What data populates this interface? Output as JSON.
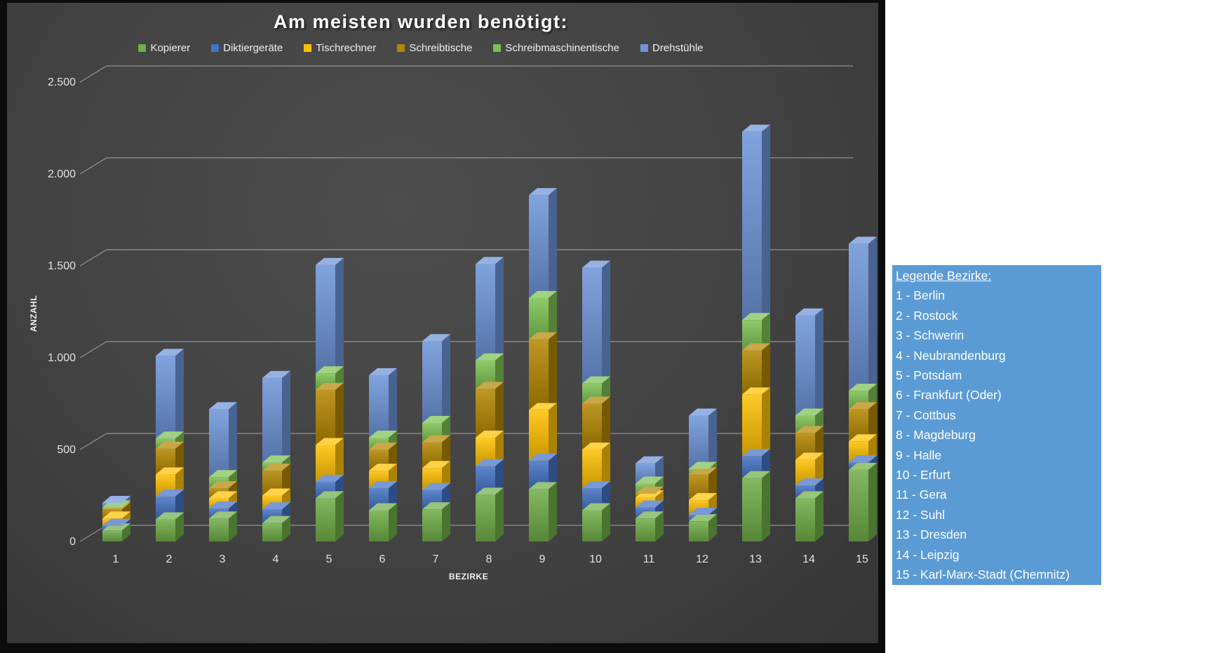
{
  "title": "Am meisten wurden benötigt:",
  "chart_data": {
    "type": "bar",
    "stacked": true,
    "title": "Am meisten wurden benötigt:",
    "xlabel": "BEZIRKE",
    "ylabel": "ANZAHL",
    "ylim": [
      0,
      2500
    ],
    "grid": true,
    "legend_position": "top",
    "y_tick_labels": [
      "0",
      "500",
      "1.000",
      "1.500",
      "2.000",
      "2.500"
    ],
    "y_tick_values": [
      0,
      500,
      1000,
      1500,
      2000,
      2500
    ],
    "categories": [
      "1",
      "2",
      "3",
      "4",
      "5",
      "6",
      "7",
      "8",
      "9",
      "10",
      "11",
      "12",
      "13",
      "14",
      "15"
    ],
    "series": [
      {
        "name": "Kopierer",
        "color": "#70AD47",
        "values": [
          60,
          120,
          125,
          100,
          235,
          170,
          175,
          255,
          285,
          170,
          125,
          110,
          345,
          235,
          390
        ]
      },
      {
        "name": "Diktiergeräte",
        "color": "#4472C4",
        "values": [
          25,
          125,
          55,
          75,
          90,
          120,
          105,
          155,
          155,
          120,
          60,
          35,
          120,
          70,
          40
        ]
      },
      {
        "name": "Tischrechner",
        "color": "#FFC000",
        "values": [
          40,
          120,
          55,
          75,
          200,
          95,
          120,
          155,
          275,
          210,
          55,
          80,
          335,
          140,
          115
        ]
      },
      {
        "name": "Schreibtische",
        "color": "#B38600",
        "values": [
          50,
          140,
          55,
          135,
          300,
          115,
          140,
          265,
          385,
          250,
          20,
          140,
          240,
          145,
          175
        ]
      },
      {
        "name": "Schreibmaschinentische",
        "color": "#7DC152",
        "values": [
          10,
          55,
          60,
          45,
          90,
          65,
          105,
          155,
          225,
          110,
          55,
          30,
          165,
          95,
          100
        ]
      },
      {
        "name": "Drehstühle",
        "color": "#6D94D8",
        "values": [
          25,
          450,
          370,
          460,
          590,
          340,
          445,
          525,
          560,
          630,
          110,
          290,
          1025,
          545,
          800
        ]
      }
    ]
  },
  "bezirke_legend": {
    "title": "Legende Bezirke:",
    "items": [
      "1 - Berlin",
      "2 - Rostock",
      "3 - Schwerin",
      "4 - Neubrandenburg",
      "5 - Potsdam",
      "6 - Frankfurt (Oder)",
      "7 - Cottbus",
      "8 - Magdeburg",
      "9 - Halle",
      "10 - Erfurt",
      "11 - Gera",
      "12 - Suhl",
      "13 - Dresden",
      "14 - Leipzig",
      "15 - Karl-Marx-Stadt (Chemnitz)"
    ]
  },
  "colors": {
    "chart_background": "#424242",
    "frame": "#0c0c0c",
    "gridline": "#A0A0A0",
    "text": "#e2e2e2",
    "bezirke_box_background": "#5B9BD5",
    "bezirke_box_text": "#ffffff"
  }
}
